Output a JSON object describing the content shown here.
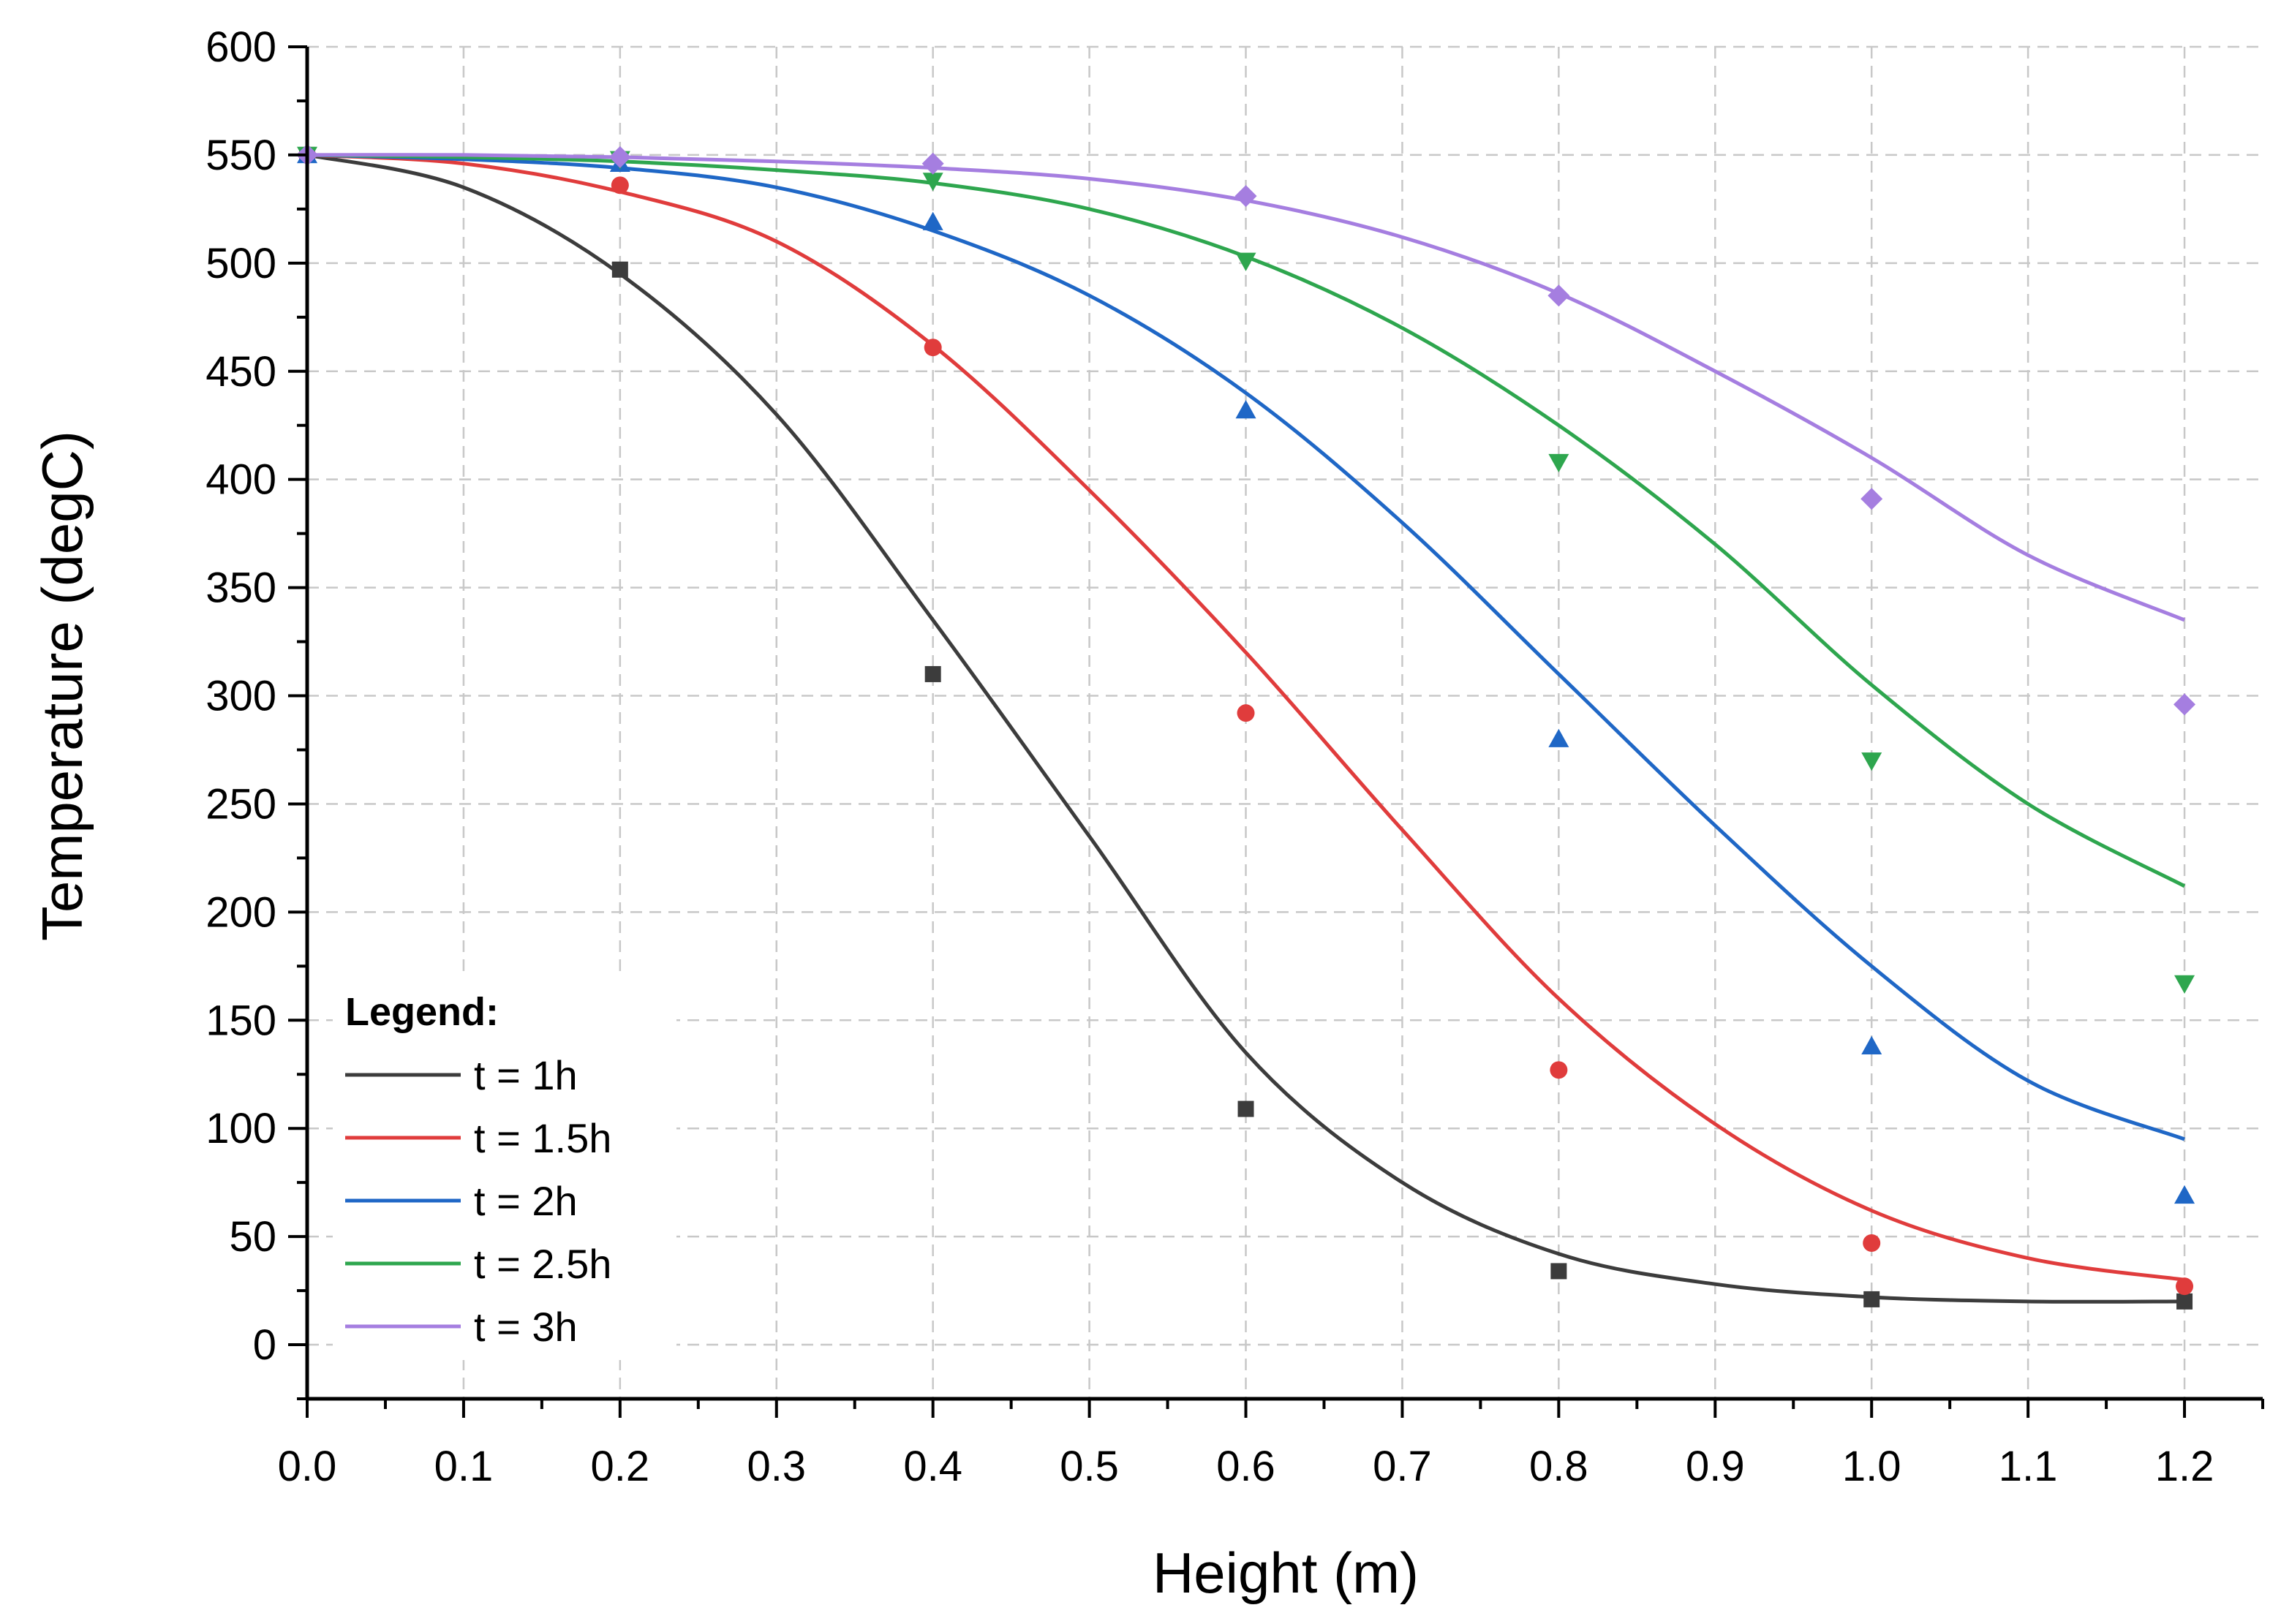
{
  "chart_data": {
    "type": "line",
    "title": "",
    "xlabel": "Height (m)",
    "ylabel": "Temperature (degC)",
    "xlim": [
      0.0,
      1.25
    ],
    "ylim": [
      -25,
      600
    ],
    "x_ticks": [
      "0.0",
      "0.1",
      "0.2",
      "0.3",
      "0.4",
      "0.5",
      "0.6",
      "0.7",
      "0.8",
      "0.9",
      "1.0",
      "1.1",
      "1.2"
    ],
    "y_ticks": [
      "0",
      "50",
      "100",
      "150",
      "200",
      "250",
      "300",
      "350",
      "400",
      "450",
      "500",
      "550",
      "600"
    ],
    "grid": true,
    "legend_title": "Legend:",
    "legend_position": "bottom-left",
    "series": [
      {
        "name": "t = 1h",
        "color": "#3c3c3c",
        "marker": "square",
        "points_x": [
          0.0,
          0.2,
          0.4,
          0.6,
          0.8,
          1.0,
          1.2
        ],
        "points_y": [
          550,
          497,
          310,
          109,
          34,
          21,
          20
        ],
        "curve_x": [
          0.0,
          0.1,
          0.2,
          0.3,
          0.4,
          0.5,
          0.6,
          0.7,
          0.8,
          0.9,
          1.0,
          1.1,
          1.2
        ],
        "curve_y": [
          550,
          535,
          495,
          430,
          335,
          235,
          135,
          75,
          42,
          28,
          22,
          20,
          20
        ]
      },
      {
        "name": "t = 1.5h",
        "color": "#e03c3c",
        "marker": "circle",
        "points_x": [
          0.0,
          0.2,
          0.4,
          0.6,
          0.8,
          1.0,
          1.2
        ],
        "points_y": [
          550,
          536,
          461,
          292,
          127,
          47,
          27
        ],
        "curve_x": [
          0.0,
          0.1,
          0.2,
          0.3,
          0.4,
          0.5,
          0.6,
          0.7,
          0.8,
          0.9,
          1.0,
          1.1,
          1.2
        ],
        "curve_y": [
          550,
          546,
          533,
          510,
          462,
          395,
          320,
          238,
          160,
          102,
          62,
          40,
          30
        ]
      },
      {
        "name": "t = 2h",
        "color": "#1f67c6",
        "marker": "triangle-up",
        "points_x": [
          0.0,
          0.2,
          0.4,
          0.6,
          0.8,
          1.0,
          1.2
        ],
        "points_y": [
          550,
          546,
          519,
          432,
          280,
          138,
          69
        ],
        "curve_x": [
          0.0,
          0.1,
          0.2,
          0.3,
          0.4,
          0.5,
          0.6,
          0.7,
          0.8,
          0.9,
          1.0,
          1.1,
          1.2
        ],
        "curve_y": [
          550,
          548,
          544,
          535,
          515,
          485,
          440,
          380,
          310,
          240,
          175,
          122,
          95
        ]
      },
      {
        "name": "t = 2.5h",
        "color": "#2ea64e",
        "marker": "triangle-down",
        "points_x": [
          0.0,
          0.2,
          0.4,
          0.6,
          0.8,
          1.0,
          1.2
        ],
        "points_y": [
          550,
          548,
          538,
          501,
          408,
          270,
          167
        ],
        "curve_x": [
          0.0,
          0.1,
          0.2,
          0.3,
          0.4,
          0.5,
          0.6,
          0.7,
          0.8,
          0.9,
          1.0,
          1.1,
          1.2
        ],
        "curve_y": [
          550,
          549,
          547,
          543,
          537,
          525,
          503,
          470,
          425,
          370,
          305,
          250,
          212
        ]
      },
      {
        "name": "t = 3h",
        "color": "#a57ee0",
        "marker": "diamond",
        "points_x": [
          0.0,
          0.2,
          0.4,
          0.6,
          0.8,
          1.0,
          1.2
        ],
        "points_y": [
          550,
          549,
          546,
          531,
          485,
          391,
          296
        ],
        "curve_x": [
          0.0,
          0.1,
          0.2,
          0.3,
          0.4,
          0.5,
          0.6,
          0.7,
          0.8,
          0.9,
          1.0,
          1.1,
          1.2
        ],
        "curve_y": [
          550,
          550,
          549,
          547,
          544,
          539,
          529,
          512,
          486,
          450,
          410,
          365,
          335
        ]
      }
    ]
  }
}
